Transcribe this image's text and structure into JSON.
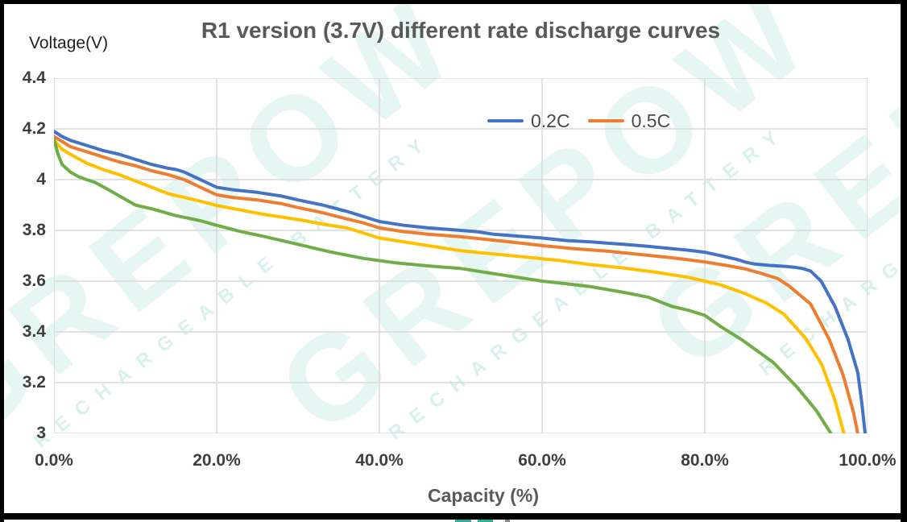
{
  "title": "R1 version (3.7V) different rate discharge curves",
  "y_axis": {
    "label": "Voltage(V)"
  },
  "x_axis": {
    "label": "Capacity (%)"
  },
  "legend": [
    {
      "label": "0.2C",
      "color": "#4472C4"
    },
    {
      "label": "0.5C",
      "color": "#ED7D31"
    }
  ],
  "watermark": {
    "text": "GREPOW",
    "subtext": "RECHARGEABLE BATTERY",
    "color": "#35B8A5"
  },
  "bottom_strip": {
    "markers": [
      {
        "color": "#21B699"
      },
      {
        "color": "#21B699"
      },
      {
        "color": "#8A8A8A"
      }
    ]
  },
  "chart_data": {
    "type": "line",
    "title": "R1 version (3.7V) different rate discharge curves",
    "xlabel": "Capacity (%)",
    "ylabel": "Voltage(V)",
    "xlim": [
      0,
      100
    ],
    "ylim": [
      3.0,
      4.4
    ],
    "grid": true,
    "grid_color": "#D9D9D9",
    "text_color": "#595959",
    "legend_position": "top-center-inside",
    "x_ticks": [
      0,
      20,
      40,
      60,
      80,
      100
    ],
    "x_tick_labels": [
      "0.0%",
      "20.0%",
      "40.0%",
      "60.0%",
      "80.0%",
      "100.0%"
    ],
    "y_ticks": [
      3.0,
      3.2,
      3.4,
      3.6,
      3.8,
      4.0,
      4.2,
      4.4
    ],
    "y_tick_labels": [
      "3",
      "3.2",
      "3.4",
      "3.6",
      "3.8",
      "4",
      "4.2",
      "4.4"
    ],
    "series": [
      {
        "name": "0.2C",
        "color": "#4472C4",
        "in_legend": true,
        "points": [
          [
            0,
            4.19
          ],
          [
            1,
            4.17
          ],
          [
            2,
            4.155
          ],
          [
            4,
            4.135
          ],
          [
            6,
            4.115
          ],
          [
            8,
            4.1
          ],
          [
            10,
            4.08
          ],
          [
            12,
            4.06
          ],
          [
            14,
            4.045
          ],
          [
            15,
            4.04
          ],
          [
            16,
            4.03
          ],
          [
            17,
            4.015
          ],
          [
            18,
            4.0
          ],
          [
            20,
            3.97
          ],
          [
            22,
            3.96
          ],
          [
            25,
            3.95
          ],
          [
            28,
            3.935
          ],
          [
            30,
            3.92
          ],
          [
            33,
            3.9
          ],
          [
            36,
            3.875
          ],
          [
            38,
            3.855
          ],
          [
            40,
            3.835
          ],
          [
            43,
            3.82
          ],
          [
            46,
            3.81
          ],
          [
            48,
            3.805
          ],
          [
            50,
            3.8
          ],
          [
            52,
            3.795
          ],
          [
            54,
            3.785
          ],
          [
            56,
            3.78
          ],
          [
            58,
            3.775
          ],
          [
            60,
            3.77
          ],
          [
            63,
            3.76
          ],
          [
            66,
            3.755
          ],
          [
            70,
            3.745
          ],
          [
            73,
            3.737
          ],
          [
            76,
            3.728
          ],
          [
            78,
            3.722
          ],
          [
            80,
            3.714
          ],
          [
            82,
            3.7
          ],
          [
            84,
            3.685
          ],
          [
            85,
            3.675
          ],
          [
            86,
            3.668
          ],
          [
            88,
            3.662
          ],
          [
            90,
            3.658
          ],
          [
            91,
            3.655
          ],
          [
            92,
            3.65
          ],
          [
            93,
            3.64
          ],
          [
            94.3,
            3.6
          ],
          [
            96,
            3.5
          ],
          [
            97.6,
            3.37
          ],
          [
            98.8,
            3.24
          ],
          [
            99.3,
            3.12
          ],
          [
            99.7,
            3.0
          ]
        ]
      },
      {
        "name": "0.5C",
        "color": "#ED7D31",
        "in_legend": true,
        "points": [
          [
            0,
            4.17
          ],
          [
            1,
            4.15
          ],
          [
            2,
            4.13
          ],
          [
            4,
            4.11
          ],
          [
            6,
            4.09
          ],
          [
            8,
            4.07
          ],
          [
            10,
            4.055
          ],
          [
            12,
            4.035
          ],
          [
            14,
            4.02
          ],
          [
            15,
            4.01
          ],
          [
            16,
            4.0
          ],
          [
            17,
            3.985
          ],
          [
            18,
            3.97
          ],
          [
            20,
            3.94
          ],
          [
            22,
            3.93
          ],
          [
            25,
            3.92
          ],
          [
            28,
            3.905
          ],
          [
            30,
            3.89
          ],
          [
            33,
            3.87
          ],
          [
            36,
            3.845
          ],
          [
            38,
            3.83
          ],
          [
            40,
            3.81
          ],
          [
            43,
            3.795
          ],
          [
            46,
            3.785
          ],
          [
            48,
            3.78
          ],
          [
            50,
            3.775
          ],
          [
            53,
            3.765
          ],
          [
            56,
            3.755
          ],
          [
            60,
            3.74
          ],
          [
            64,
            3.728
          ],
          [
            68,
            3.718
          ],
          [
            72,
            3.705
          ],
          [
            76,
            3.692
          ],
          [
            80,
            3.676
          ],
          [
            83,
            3.66
          ],
          [
            85,
            3.648
          ],
          [
            87,
            3.63
          ],
          [
            89,
            3.61
          ],
          [
            90.4,
            3.58
          ],
          [
            93,
            3.51
          ],
          [
            95.3,
            3.37
          ],
          [
            97,
            3.23
          ],
          [
            98.3,
            3.08
          ],
          [
            98.8,
            3.0
          ]
        ]
      },
      {
        "name": "",
        "color": "#FFC000",
        "in_legend": false,
        "points": [
          [
            0,
            4.155
          ],
          [
            1,
            4.12
          ],
          [
            2,
            4.1
          ],
          [
            4,
            4.065
          ],
          [
            6,
            4.04
          ],
          [
            8,
            4.02
          ],
          [
            10,
            3.995
          ],
          [
            12,
            3.97
          ],
          [
            14,
            3.945
          ],
          [
            16,
            3.93
          ],
          [
            18,
            3.915
          ],
          [
            20,
            3.898
          ],
          [
            23,
            3.88
          ],
          [
            26,
            3.862
          ],
          [
            30,
            3.843
          ],
          [
            33,
            3.825
          ],
          [
            36,
            3.81
          ],
          [
            40,
            3.77
          ],
          [
            44,
            3.75
          ],
          [
            48,
            3.73
          ],
          [
            50,
            3.72
          ],
          [
            54,
            3.707
          ],
          [
            58,
            3.695
          ],
          [
            62,
            3.682
          ],
          [
            66,
            3.665
          ],
          [
            70,
            3.652
          ],
          [
            74,
            3.635
          ],
          [
            78,
            3.615
          ],
          [
            80,
            3.6
          ],
          [
            82,
            3.585
          ],
          [
            85,
            3.55
          ],
          [
            87.5,
            3.515
          ],
          [
            89.7,
            3.47
          ],
          [
            92.4,
            3.375
          ],
          [
            94.4,
            3.27
          ],
          [
            96,
            3.13
          ],
          [
            97.1,
            3.0
          ]
        ]
      },
      {
        "name": "",
        "color": "#70AD47",
        "in_legend": false,
        "points": [
          [
            0,
            4.16
          ],
          [
            0.5,
            4.1
          ],
          [
            1,
            4.06
          ],
          [
            2,
            4.03
          ],
          [
            3,
            4.012
          ],
          [
            4,
            4.0
          ],
          [
            5,
            3.99
          ],
          [
            7,
            3.955
          ],
          [
            10,
            3.9
          ],
          [
            12,
            3.885
          ],
          [
            15,
            3.858
          ],
          [
            18,
            3.838
          ],
          [
            20,
            3.82
          ],
          [
            23,
            3.795
          ],
          [
            26,
            3.775
          ],
          [
            30,
            3.745
          ],
          [
            34,
            3.715
          ],
          [
            38,
            3.69
          ],
          [
            42,
            3.672
          ],
          [
            46,
            3.66
          ],
          [
            50,
            3.65
          ],
          [
            54,
            3.63
          ],
          [
            58,
            3.61
          ],
          [
            60,
            3.6
          ],
          [
            63,
            3.59
          ],
          [
            66,
            3.578
          ],
          [
            70,
            3.556
          ],
          [
            73,
            3.537
          ],
          [
            76,
            3.5
          ],
          [
            78,
            3.485
          ],
          [
            80,
            3.465
          ],
          [
            82,
            3.42
          ],
          [
            84.5,
            3.37
          ],
          [
            88.4,
            3.28
          ],
          [
            91.4,
            3.18
          ],
          [
            93.7,
            3.09
          ],
          [
            95.5,
            3.0
          ]
        ]
      }
    ]
  }
}
